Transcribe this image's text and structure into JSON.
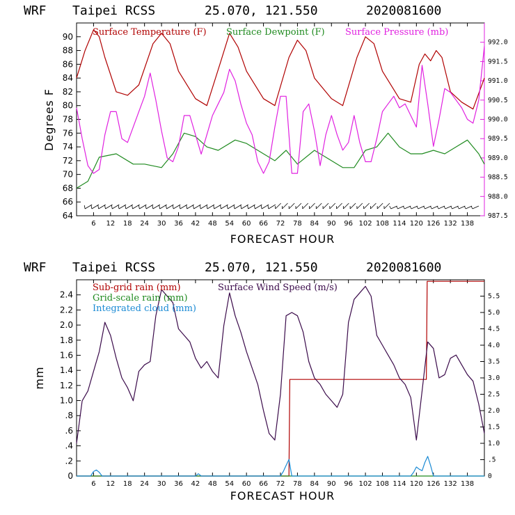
{
  "chart_data": [
    {
      "type": "line",
      "header": {
        "model": "WRF",
        "station": "Taipei RCSS",
        "coords": "25.070, 121.550",
        "init": "2020081600"
      },
      "xlabel": "FORECAST HOUR",
      "ylabel": "Degrees F",
      "xlim": [
        0,
        144
      ],
      "ylim": [
        64,
        92
      ],
      "y2lim": [
        987.5,
        992.5
      ],
      "x_ticks": [
        6,
        12,
        18,
        24,
        30,
        36,
        42,
        48,
        54,
        60,
        66,
        72,
        78,
        84,
        90,
        96,
        102,
        108,
        114,
        120,
        126,
        132,
        138
      ],
      "x_tick_labels": [
        "6",
        "12",
        "18",
        "24",
        "30",
        "36",
        "42",
        "48",
        "54",
        "60",
        "66",
        "72",
        "78",
        "84",
        "90",
        "96",
        "102",
        "108",
        "114",
        "120",
        "126",
        "132",
        "138"
      ],
      "y_ticks": [
        64,
        66,
        68,
        70,
        72,
        74,
        76,
        78,
        80,
        82,
        84,
        86,
        88,
        90
      ],
      "y_tick_labels": [
        "64",
        "66",
        "68",
        "70",
        "72",
        "74",
        "76",
        "78",
        "80",
        "82",
        "84",
        "86",
        "88",
        "90"
      ],
      "y2_ticks": [
        987.5,
        988.0,
        988.5,
        989.0,
        989.5,
        990.0,
        990.5,
        991.0,
        991.5,
        992.0
      ],
      "y2_tick_labels": [
        "987.5",
        "988.0",
        "988.5",
        "989.0",
        "989.5",
        "990.0",
        "990.5",
        "991.0",
        "991.5",
        "992.0"
      ],
      "legend": [
        {
          "label": "Surface Temperature (F)",
          "color": "#b00000"
        },
        {
          "label": "Surface Dewpoint (F)",
          "color": "#1f8a1f"
        },
        {
          "label": "Surface Pressure (mb)",
          "color": "#e020e0"
        }
      ],
      "series": [
        {
          "name": "Surface Temperature (F)",
          "axis": "left",
          "color": "#b00000",
          "x": [
            0,
            3,
            6,
            8,
            10,
            14,
            18,
            22,
            27,
            30,
            33,
            36,
            42,
            46,
            51,
            54,
            57,
            60,
            66,
            70,
            75,
            78,
            81,
            84,
            90,
            94,
            99,
            102,
            105,
            108,
            114,
            118,
            121,
            123,
            125,
            127,
            129,
            132,
            136,
            140,
            144
          ],
          "y": [
            84,
            88,
            91,
            90,
            87,
            82,
            81.5,
            83,
            89,
            90.5,
            89,
            85,
            81,
            80,
            86.5,
            90.5,
            88.5,
            85,
            81,
            80,
            87,
            89.5,
            88,
            84,
            81,
            80,
            87,
            90,
            89,
            85,
            81,
            80.5,
            86,
            87.5,
            86.5,
            88,
            87,
            82,
            80.5,
            79.5,
            84
          ]
        },
        {
          "name": "Surface Dewpoint (F)",
          "axis": "left",
          "color": "#1f8a1f",
          "x": [
            0,
            4,
            8,
            14,
            20,
            24,
            30,
            34,
            38,
            42,
            46,
            50,
            56,
            60,
            66,
            70,
            74,
            78,
            84,
            88,
            94,
            98,
            102,
            106,
            110,
            114,
            118,
            122,
            126,
            130,
            134,
            138,
            142,
            144
          ],
          "y": [
            68,
            69,
            72.5,
            73,
            71.5,
            71.5,
            71,
            73,
            76,
            75.5,
            74,
            73.5,
            75,
            74.5,
            73,
            72,
            73.5,
            71.5,
            73.5,
            72.5,
            71,
            71,
            73.5,
            74,
            76,
            74,
            73,
            73,
            73.5,
            73,
            74,
            75,
            73,
            71.5
          ]
        },
        {
          "name": "Surface Pressure (mb)",
          "axis": "right",
          "color": "#e020e0",
          "x": [
            0,
            2,
            4,
            6,
            8,
            10,
            12,
            14,
            16,
            18,
            20,
            22,
            24,
            26,
            28,
            30,
            32,
            34,
            36,
            38,
            40,
            42,
            44,
            46,
            48,
            50,
            52,
            54,
            56,
            58,
            60,
            62,
            64,
            66,
            68,
            70,
            72,
            74,
            76,
            78,
            80,
            82,
            84,
            86,
            88,
            90,
            92,
            94,
            96,
            98,
            100,
            102,
            104,
            106,
            108,
            110,
            112,
            114,
            116,
            118,
            120,
            122,
            124,
            126,
            128,
            130,
            132,
            134,
            136,
            138,
            140,
            142,
            144
          ],
          "y": [
            990.3,
            989.5,
            988.8,
            988.6,
            988.7,
            989.6,
            990.2,
            990.2,
            989.5,
            989.4,
            989.8,
            990.2,
            990.6,
            991.2,
            990.5,
            989.7,
            989.0,
            988.9,
            989.3,
            990.1,
            990.1,
            989.6,
            989.1,
            989.6,
            990.1,
            990.4,
            990.7,
            991.3,
            991.0,
            990.4,
            989.9,
            989.6,
            988.9,
            988.6,
            988.9,
            989.8,
            990.6,
            990.6,
            988.6,
            988.6,
            990.2,
            990.4,
            989.7,
            988.8,
            989.6,
            990.1,
            989.6,
            989.2,
            989.4,
            990.1,
            989.4,
            988.9,
            988.9,
            989.5,
            990.2,
            990.4,
            990.6,
            990.3,
            990.4,
            990.1,
            989.8,
            991.4,
            990.4,
            989.3,
            990.0,
            990.8,
            990.7,
            990.5,
            990.3,
            990.0,
            989.9,
            990.5,
            991.9
          ]
        }
      ],
      "wind_barbs": "row of wind barbs along the bottom of the upper panel"
    },
    {
      "type": "line",
      "header": {
        "model": "WRF",
        "station": "Taipei RCSS",
        "coords": "25.070, 121.550",
        "init": "2020081600"
      },
      "xlabel": "FORECAST HOUR",
      "ylabel": "mm",
      "xlim": [
        0,
        144
      ],
      "ylim": [
        0,
        2.6
      ],
      "y2lim": [
        0,
        6.0
      ],
      "x_ticks": [
        6,
        12,
        18,
        24,
        30,
        36,
        42,
        48,
        54,
        60,
        66,
        72,
        78,
        84,
        90,
        96,
        102,
        108,
        114,
        120,
        126,
        132,
        138
      ],
      "x_tick_labels": [
        "6",
        "12",
        "18",
        "24",
        "30",
        "36",
        "42",
        "48",
        "54",
        "60",
        "66",
        "72",
        "78",
        "84",
        "90",
        "96",
        "102",
        "108",
        "114",
        "120",
        "126",
        "132",
        "138"
      ],
      "y_ticks": [
        0,
        0.2,
        0.4,
        0.6,
        0.8,
        1.0,
        1.2,
        1.4,
        1.6,
        1.8,
        2.0,
        2.2,
        2.4
      ],
      "y_tick_labels": [
        "0",
        ".2",
        ".4",
        ".6",
        ".8",
        "1.0",
        "1.2",
        "1.4",
        "1.6",
        "1.8",
        "2.0",
        "2.2",
        "2.4"
      ],
      "y2_ticks": [
        0,
        0.5,
        1.0,
        1.5,
        2.0,
        2.5,
        3.0,
        3.5,
        4.0,
        4.5,
        5.0,
        5.5
      ],
      "y2_tick_labels": [
        "0",
        ".5",
        "1.0",
        "1.5",
        "2.0",
        "2.5",
        "3.0",
        "3.5",
        "4.0",
        "4.5",
        "5.0",
        "5.5"
      ],
      "legend": [
        {
          "label": "Sub-grid rain (mm)",
          "color": "#b00000"
        },
        {
          "label": "Surface Wind Speed (m/s)",
          "color": "#3a0a4a"
        },
        {
          "label": "Grid-scale rain (mm)",
          "color": "#1f8a1f"
        },
        {
          "label": "Integrated cloud (mm)",
          "color": "#1a8ad4"
        }
      ],
      "series": [
        {
          "name": "Sub-grid rain (mm)",
          "axis": "left",
          "color": "#b00000",
          "x": [
            0,
            75,
            75.3,
            123.5,
            123.8,
            144
          ],
          "y": [
            0,
            0,
            1.28,
            1.28,
            2.58,
            2.58
          ]
        },
        {
          "name": "Surface Wind Speed (m/s)",
          "axis": "right",
          "color": "#3a0a4a",
          "x": [
            0,
            2,
            4,
            6,
            8,
            10,
            12,
            14,
            16,
            18,
            20,
            22,
            24,
            26,
            28,
            30,
            32,
            34,
            36,
            38,
            40,
            42,
            44,
            46,
            48,
            50,
            52,
            54,
            56,
            58,
            60,
            62,
            64,
            66,
            68,
            70,
            72,
            74,
            76,
            78,
            80,
            82,
            84,
            86,
            88,
            90,
            92,
            94,
            96,
            98,
            100,
            102,
            104,
            106,
            108,
            110,
            112,
            114,
            116,
            118,
            120,
            122,
            124,
            126,
            128,
            130,
            132,
            134,
            136,
            138,
            140,
            142,
            144
          ],
          "y": [
            1.0,
            2.3,
            2.6,
            3.2,
            3.8,
            4.7,
            4.3,
            3.6,
            3.0,
            2.7,
            2.3,
            3.2,
            3.4,
            3.5,
            4.9,
            5.7,
            5.5,
            5.3,
            4.5,
            4.3,
            4.1,
            3.6,
            3.3,
            3.5,
            3.2,
            3.0,
            4.6,
            5.6,
            4.9,
            4.4,
            3.8,
            3.3,
            2.8,
            2.0,
            1.3,
            1.1,
            2.5,
            4.9,
            5.0,
            4.9,
            4.4,
            3.5,
            3.0,
            2.8,
            2.5,
            2.3,
            2.1,
            2.5,
            4.7,
            5.4,
            5.6,
            5.8,
            5.5,
            4.3,
            4.0,
            3.7,
            3.4,
            3.0,
            2.8,
            2.4,
            1.1,
            2.6,
            4.1,
            3.9,
            3.0,
            3.1,
            3.6,
            3.7,
            3.4,
            3.1,
            2.9,
            2.2,
            1.3
          ]
        },
        {
          "name": "Grid-scale rain (mm)",
          "axis": "left",
          "color": "#1f8a1f",
          "x": [
            0,
            144
          ],
          "y": [
            0,
            0
          ]
        },
        {
          "name": "Integrated cloud (mm)",
          "axis": "left",
          "color": "#1a8ad4",
          "x": [
            0,
            5,
            6,
            7,
            8,
            9,
            42,
            43,
            44,
            72,
            73,
            74,
            75,
            76,
            118,
            119,
            120,
            121,
            122,
            123,
            124,
            125,
            126,
            144
          ],
          "y": [
            0,
            0,
            0.06,
            0.08,
            0.05,
            0,
            0,
            0.03,
            0,
            0,
            0.06,
            0.14,
            0.22,
            0,
            0,
            0.05,
            0.12,
            0.09,
            0.07,
            0.18,
            0.26,
            0.14,
            0,
            0
          ]
        }
      ]
    }
  ]
}
